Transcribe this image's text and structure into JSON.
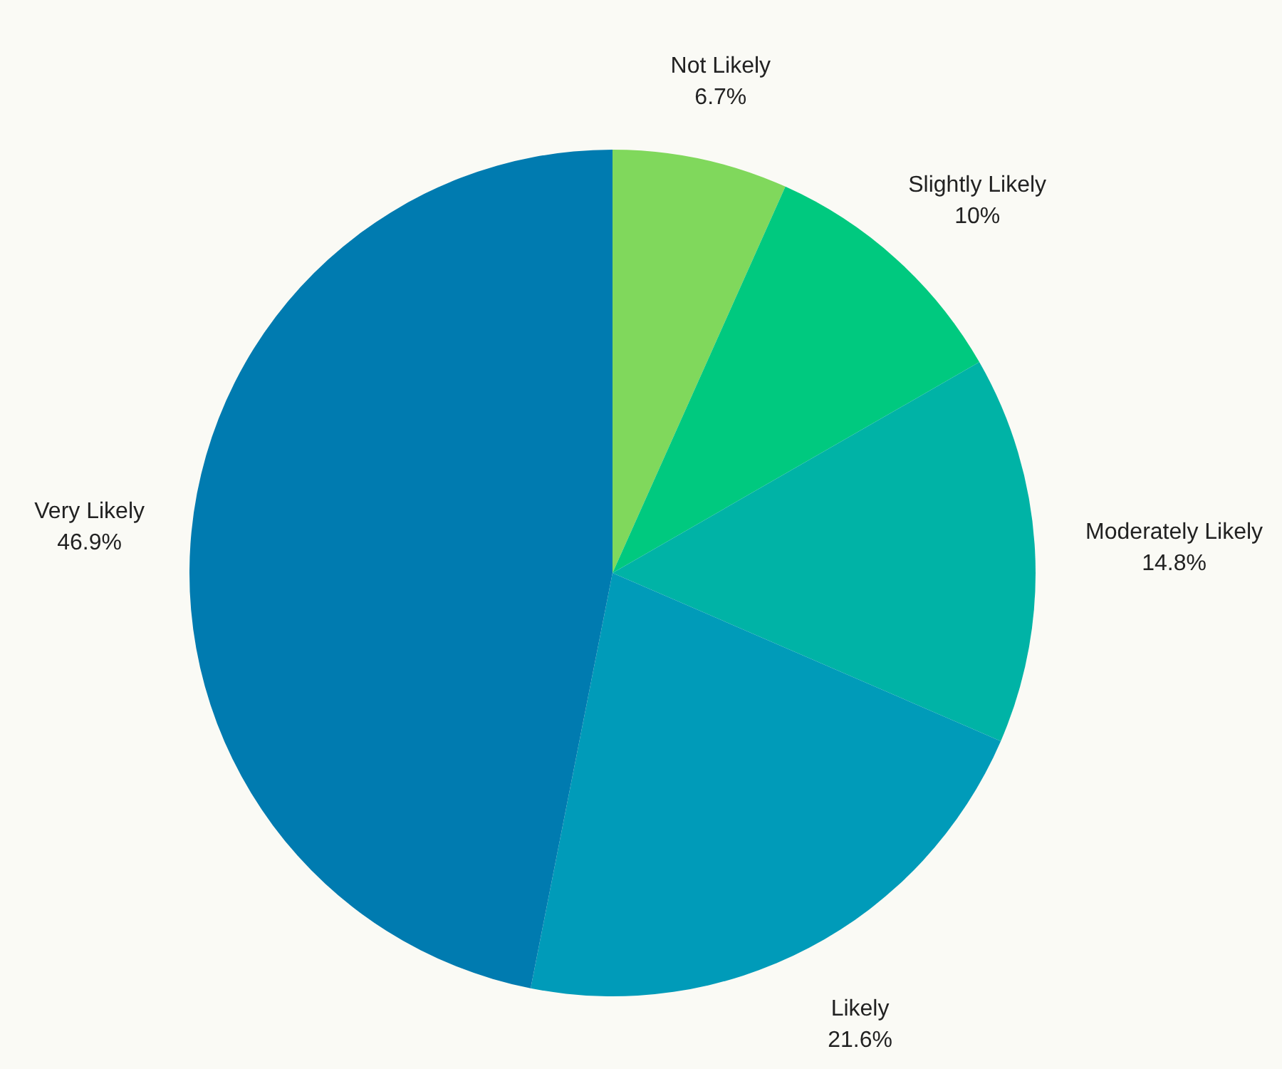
{
  "chart_data": {
    "type": "pie",
    "categories": [
      "Not Likely",
      "Slightly Likely",
      "Moderately Likely",
      "Likely",
      "Very Likely"
    ],
    "values": [
      6.7,
      10,
      14.8,
      21.6,
      46.9
    ],
    "value_labels": [
      "6.7%",
      "10%",
      "14.8%",
      "21.6%",
      "46.9%"
    ],
    "colors": [
      "#80d85c",
      "#00c97f",
      "#00b3a6",
      "#009bb9",
      "#007bb0"
    ]
  }
}
